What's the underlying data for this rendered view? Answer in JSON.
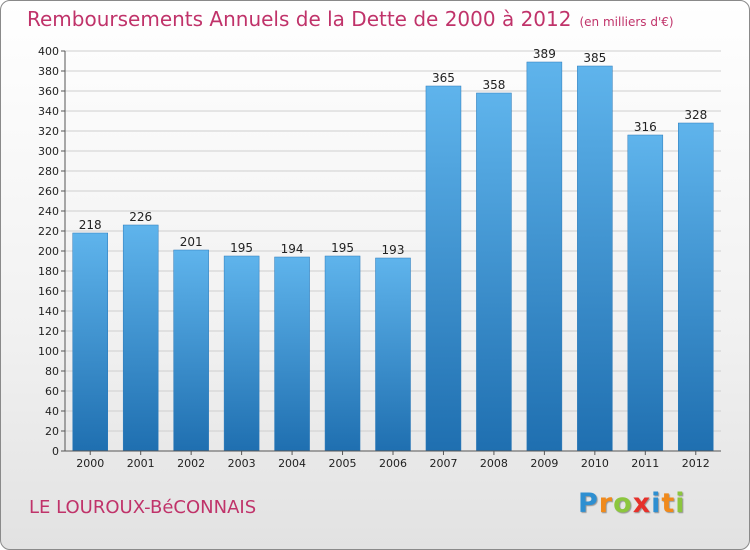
{
  "header": {
    "title": "Remboursements Annuels de la Dette de 2000 à 2012",
    "unit": "(en milliers d'€)"
  },
  "footer": {
    "commune": "LE LOUROUX-BéCONNAIS",
    "logo_letters": [
      "P",
      "r",
      "o",
      "x",
      "i",
      "t",
      "i"
    ],
    "logo_colors": [
      "#2e8fd1",
      "#f08a1c",
      "#8cc63e",
      "#e6312b",
      "#2e8fd1",
      "#f08a1c",
      "#8cc63e"
    ]
  },
  "colors": {
    "title": "#c0336a",
    "bar_top": "#5fb4ec",
    "bar_bottom": "#1f6fb0",
    "grid": "#cfcfcf"
  },
  "chart_data": {
    "type": "bar",
    "title": "Remboursements Annuels de la Dette de 2000 à 2012",
    "categories": [
      "2000",
      "2001",
      "2002",
      "2003",
      "2004",
      "2005",
      "2006",
      "2007",
      "2008",
      "2009",
      "2010",
      "2011",
      "2012"
    ],
    "values": [
      218,
      226,
      201,
      195,
      194,
      195,
      193,
      365,
      358,
      389,
      385,
      316,
      328
    ],
    "ylim": [
      0,
      400
    ],
    "ytick_step": 20,
    "grid": true,
    "xlabel": "",
    "ylabel": ""
  }
}
